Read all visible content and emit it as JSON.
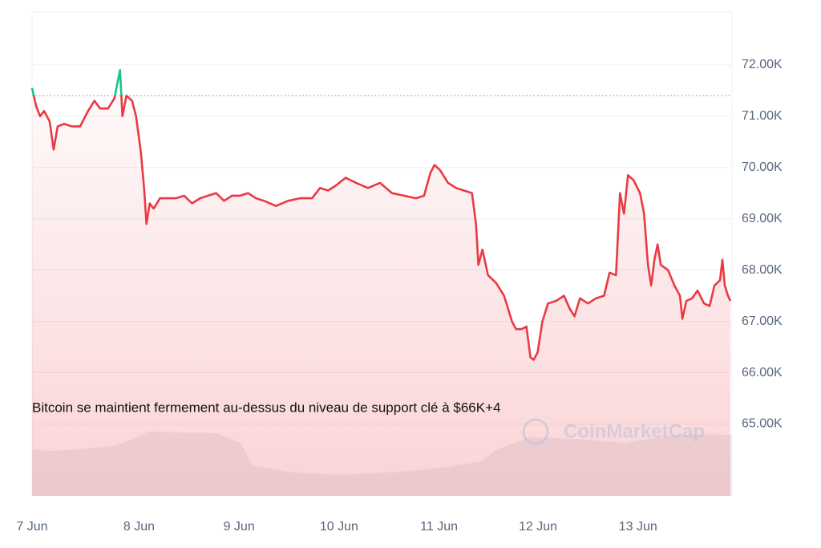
{
  "chart_data": {
    "type": "line",
    "caption": "Bitcoin se maintient fermement au-dessus du niveau de support clé à $66K+4",
    "watermark": "CoinMarketCap",
    "x": [
      0,
      0.04,
      0.08,
      0.12,
      0.176,
      0.216,
      0.256,
      0.32,
      0.4,
      0.48,
      0.56,
      0.624,
      0.68,
      0.76,
      0.824,
      0.88,
      0.904,
      0.944,
      1.0,
      1.04,
      1.088,
      1.12,
      1.144,
      1.176,
      1.216,
      1.28,
      1.36,
      1.44,
      1.52,
      1.6,
      1.68,
      1.76,
      1.84,
      1.92,
      2.0,
      2.08,
      2.16,
      2.24,
      2.32,
      2.44,
      2.56,
      2.68,
      2.8,
      2.88,
      2.96,
      3.04,
      3.136,
      3.24,
      3.36,
      3.48,
      3.6,
      3.72,
      3.84,
      3.92,
      3.984,
      4.024,
      4.08,
      4.16,
      4.24,
      4.32,
      4.4,
      4.44,
      4.464,
      4.504,
      4.56,
      4.64,
      4.72,
      4.8,
      4.84,
      4.896,
      4.944,
      4.984,
      5.016,
      5.056,
      5.104,
      5.16,
      5.24,
      5.32,
      5.376,
      5.424,
      5.48,
      5.56,
      5.64,
      5.72,
      5.776,
      5.84,
      5.88,
      5.92,
      5.96,
      6.016,
      6.08,
      6.12,
      6.16,
      6.192,
      6.224,
      6.256,
      6.288,
      6.36,
      6.424,
      6.48,
      6.504,
      6.544,
      6.6,
      6.656,
      6.72,
      6.776,
      6.824,
      6.88,
      6.904,
      6.928,
      6.96,
      6.984
    ],
    "values": [
      71.55,
      71.2,
      71.0,
      71.1,
      70.9,
      70.35,
      70.8,
      70.85,
      70.8,
      70.8,
      71.1,
      71.3,
      71.15,
      71.15,
      71.35,
      71.9,
      71.0,
      71.4,
      71.3,
      71.0,
      70.3,
      69.6,
      68.9,
      69.3,
      69.2,
      69.4,
      69.4,
      69.4,
      69.45,
      69.3,
      69.4,
      69.45,
      69.5,
      69.35,
      69.45,
      69.45,
      69.5,
      69.4,
      69.35,
      69.25,
      69.35,
      69.4,
      69.4,
      69.6,
      69.55,
      69.65,
      69.8,
      69.7,
      69.6,
      69.7,
      69.5,
      69.45,
      69.4,
      69.45,
      69.9,
      70.05,
      69.95,
      69.7,
      69.6,
      69.55,
      69.5,
      68.9,
      68.1,
      68.4,
      67.9,
      67.75,
      67.5,
      67.0,
      66.85,
      66.85,
      66.9,
      66.3,
      66.25,
      66.4,
      67.0,
      67.35,
      67.4,
      67.5,
      67.25,
      67.1,
      67.45,
      67.35,
      67.45,
      67.5,
      67.95,
      67.9,
      69.5,
      69.1,
      69.85,
      69.75,
      69.5,
      69.1,
      68.1,
      67.7,
      68.2,
      68.5,
      68.1,
      68.0,
      67.7,
      67.5,
      67.05,
      67.4,
      67.45,
      67.6,
      67.35,
      67.3,
      67.7,
      67.8,
      68.2,
      67.7,
      67.5,
      67.4
    ],
    "reference": 71.4,
    "color_up": "#16c784",
    "color_down": "#ea3943",
    "xlim": [
      0,
      7
    ],
    "ylim": [
      63.6,
      73.03
    ],
    "xticks": [
      {
        "value": 0,
        "label": "7 Jun"
      },
      {
        "value": 1.07,
        "label": "8 Jun"
      },
      {
        "value": 2.07,
        "label": "9 Jun"
      },
      {
        "value": 3.07,
        "label": "10 Jun"
      },
      {
        "value": 4.07,
        "label": "11 Jun"
      },
      {
        "value": 5.06,
        "label": "12 Jun"
      },
      {
        "value": 6.06,
        "label": "13 Jun"
      }
    ],
    "yticks": [
      {
        "value": 65,
        "label": "65.00K"
      },
      {
        "value": 66,
        "label": "66.00K"
      },
      {
        "value": 67,
        "label": "67.00K"
      },
      {
        "value": 68,
        "label": "68.00K"
      },
      {
        "value": 69,
        "label": "69.00K"
      },
      {
        "value": 70,
        "label": "70.00K"
      },
      {
        "value": 71,
        "label": "71.00K"
      },
      {
        "value": 72,
        "label": "72.00K"
      }
    ],
    "grid": true
  }
}
